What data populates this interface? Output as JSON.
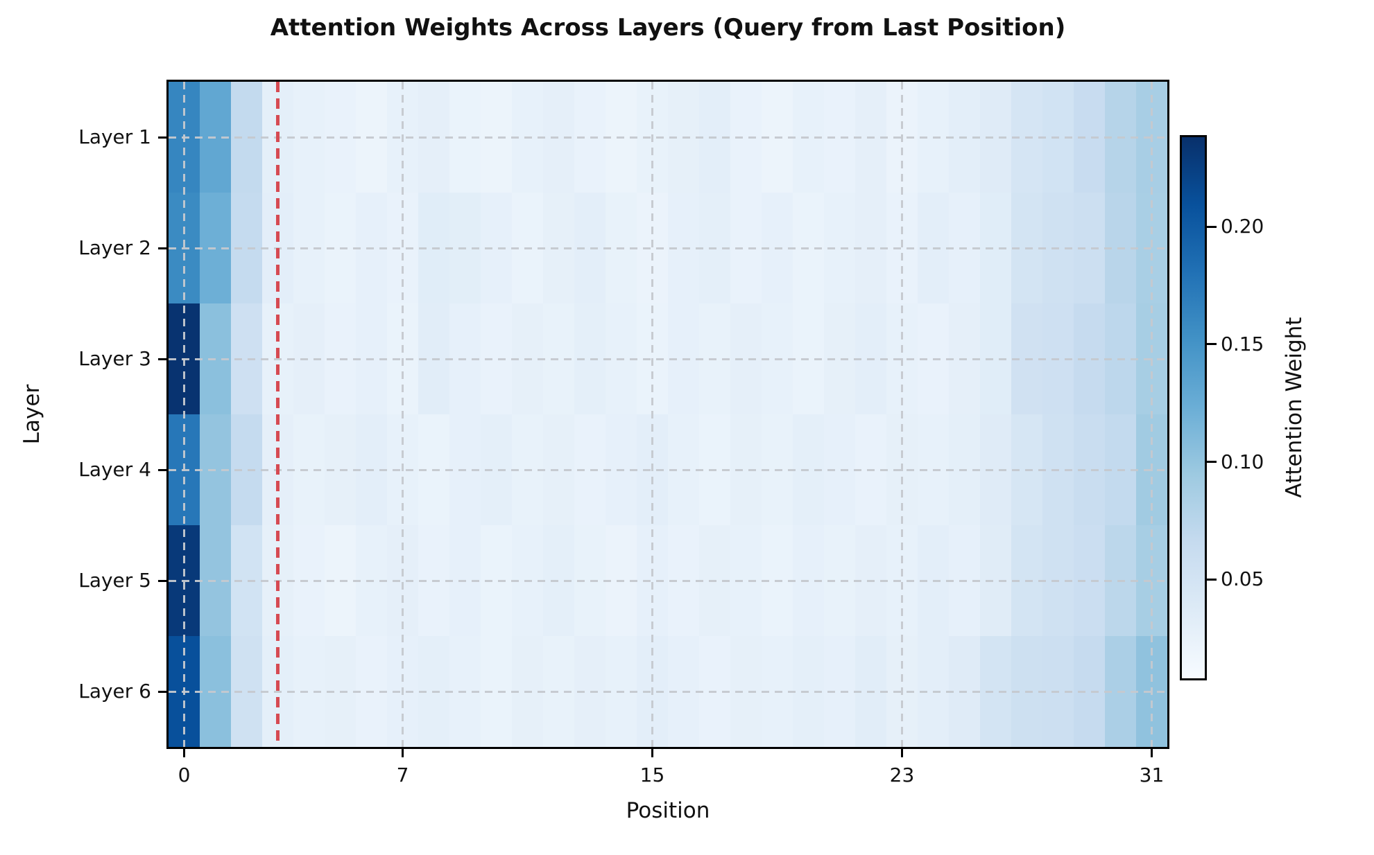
{
  "figure": {
    "background": "#ffffff"
  },
  "colors": {
    "spine": "#000000",
    "grid_dash": "#c5c9cf",
    "query_line_red": "#d64a52",
    "colormap_low": "#f7fbff",
    "colormap_high": "#08306b"
  },
  "chart_data": {
    "type": "heatmap",
    "title": "Attention Weights Across Layers (Query from Last Position)",
    "xlabel": "Position",
    "ylabel": "Layer",
    "colormap": "Blues",
    "colormap_anchors": [
      "#f7fbff",
      "#deebf7",
      "#c6dbef",
      "#9ecae1",
      "#6baed6",
      "#4292c6",
      "#2171b5",
      "#08519c",
      "#08306b"
    ],
    "vmin": 0.008,
    "vmax": 0.238,
    "n_positions": 32,
    "x_tick_values": [
      0,
      7,
      15,
      23,
      31
    ],
    "x_tick_labels": [
      "0",
      "7",
      "15",
      "23",
      "31"
    ],
    "categories": [
      "Layer 1",
      "Layer 2",
      "Layer 3",
      "Layer 4",
      "Layer 5",
      "Layer 6"
    ],
    "grid": true,
    "legend_position": "none",
    "vline": {
      "x": 2.5,
      "style": "dashed",
      "color": "#d64a52"
    },
    "colorbar": {
      "label": "Attention Weight",
      "tick_values": [
        0.05,
        0.1,
        0.15,
        0.2
      ],
      "tick_labels": [
        "0.05",
        "0.10",
        "0.15",
        "0.20"
      ]
    },
    "series": [
      {
        "name": "Layer 1",
        "values": [
          0.162,
          0.13,
          0.068,
          0.03,
          0.026,
          0.024,
          0.021,
          0.026,
          0.029,
          0.023,
          0.021,
          0.026,
          0.029,
          0.024,
          0.021,
          0.025,
          0.028,
          0.031,
          0.024,
          0.021,
          0.026,
          0.024,
          0.029,
          0.022,
          0.026,
          0.031,
          0.036,
          0.048,
          0.052,
          0.063,
          0.077,
          0.087
        ]
      },
      {
        "name": "Layer 2",
        "values": [
          0.158,
          0.122,
          0.066,
          0.031,
          0.026,
          0.023,
          0.027,
          0.024,
          0.034,
          0.032,
          0.027,
          0.023,
          0.028,
          0.031,
          0.025,
          0.022,
          0.027,
          0.03,
          0.024,
          0.027,
          0.023,
          0.026,
          0.029,
          0.024,
          0.031,
          0.027,
          0.034,
          0.05,
          0.055,
          0.058,
          0.075,
          0.086
        ]
      },
      {
        "name": "Layer 3",
        "values": [
          0.235,
          0.105,
          0.056,
          0.026,
          0.029,
          0.024,
          0.027,
          0.023,
          0.033,
          0.027,
          0.024,
          0.028,
          0.025,
          0.03,
          0.026,
          0.023,
          0.027,
          0.025,
          0.029,
          0.026,
          0.023,
          0.028,
          0.031,
          0.026,
          0.024,
          0.029,
          0.034,
          0.054,
          0.056,
          0.065,
          0.072,
          0.088
        ]
      },
      {
        "name": "Layer 4",
        "values": [
          0.175,
          0.1,
          0.066,
          0.029,
          0.025,
          0.028,
          0.031,
          0.026,
          0.023,
          0.027,
          0.03,
          0.025,
          0.028,
          0.024,
          0.027,
          0.031,
          0.026,
          0.023,
          0.028,
          0.025,
          0.03,
          0.027,
          0.024,
          0.028,
          0.026,
          0.03,
          0.036,
          0.046,
          0.055,
          0.062,
          0.068,
          0.092
        ]
      },
      {
        "name": "Layer 5",
        "values": [
          0.23,
          0.1,
          0.052,
          0.028,
          0.024,
          0.021,
          0.026,
          0.029,
          0.024,
          0.027,
          0.023,
          0.026,
          0.03,
          0.025,
          0.022,
          0.027,
          0.024,
          0.028,
          0.026,
          0.023,
          0.027,
          0.025,
          0.029,
          0.026,
          0.031,
          0.027,
          0.035,
          0.05,
          0.055,
          0.06,
          0.073,
          0.088
        ]
      },
      {
        "name": "Layer 6",
        "values": [
          0.21,
          0.105,
          0.055,
          0.03,
          0.026,
          0.028,
          0.024,
          0.027,
          0.03,
          0.026,
          0.023,
          0.028,
          0.025,
          0.029,
          0.026,
          0.031,
          0.027,
          0.024,
          0.028,
          0.026,
          0.03,
          0.027,
          0.033,
          0.028,
          0.031,
          0.036,
          0.05,
          0.057,
          0.058,
          0.065,
          0.085,
          0.102
        ]
      }
    ]
  }
}
